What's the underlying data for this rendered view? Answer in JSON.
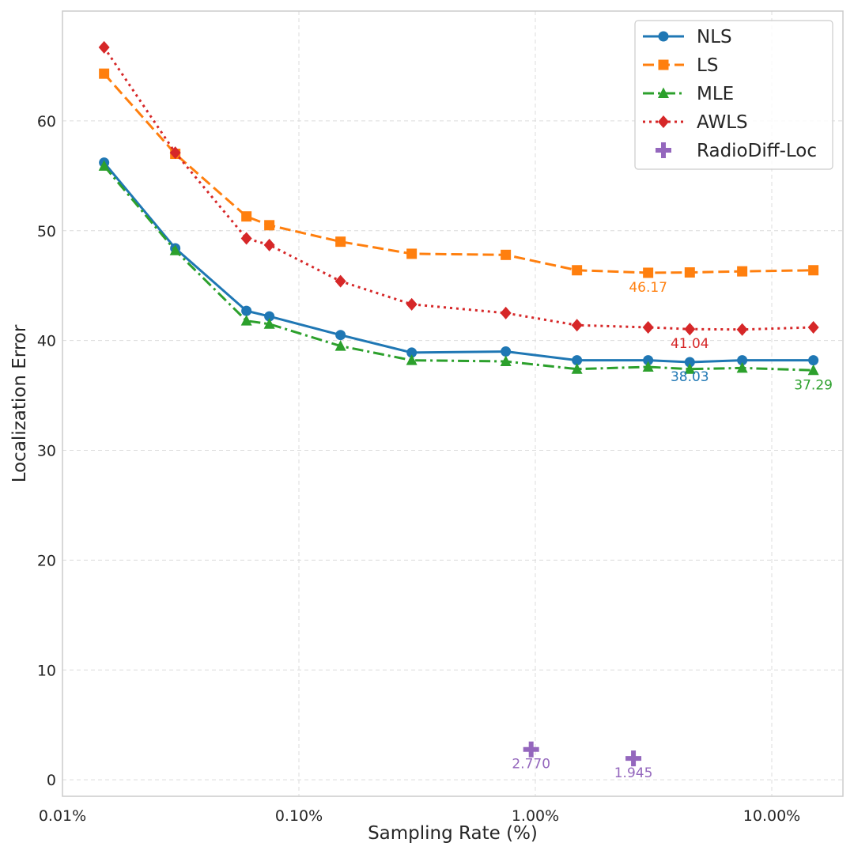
{
  "chart_data": {
    "type": "line",
    "title": "",
    "xlabel": "Sampling Rate (%)",
    "ylabel": "Localization Error",
    "xscale": "log",
    "xlim": [
      0.01,
      20
    ],
    "ylim": [
      -1.5,
      70
    ],
    "grid": true,
    "legend_position": "top-right",
    "x_ticks": [
      0.01,
      0.1,
      1,
      10
    ],
    "x_tick_labels": [
      "0.01%",
      "0.10%",
      "1.00%",
      "10.00%"
    ],
    "y_ticks": [
      0,
      10,
      20,
      30,
      40,
      50,
      60
    ],
    "y_tick_labels": [
      "0",
      "10",
      "20",
      "30",
      "40",
      "50",
      "60"
    ],
    "x": [
      0.015,
      0.03,
      0.06,
      0.075,
      0.15,
      0.3,
      0.75,
      1.5,
      3.0,
      4.5,
      7.5,
      15.0
    ],
    "series": [
      {
        "name": "NLS",
        "color": "#1f77b4",
        "style": "solid",
        "marker": "circle",
        "values": [
          56.2,
          48.4,
          42.7,
          42.2,
          40.5,
          38.9,
          39.0,
          38.2,
          38.2,
          38.03,
          38.2,
          38.2
        ]
      },
      {
        "name": "LS",
        "color": "#ff7f0e",
        "style": "dashed",
        "marker": "square",
        "values": [
          64.3,
          57.0,
          51.3,
          50.5,
          49.0,
          47.9,
          47.8,
          46.4,
          46.17,
          46.2,
          46.3,
          46.4
        ]
      },
      {
        "name": "MLE",
        "color": "#2ca02c",
        "style": "dashdot",
        "marker": "triangle",
        "values": [
          55.9,
          48.2,
          41.8,
          41.5,
          39.5,
          38.2,
          38.1,
          37.4,
          37.6,
          37.4,
          37.5,
          37.29
        ]
      },
      {
        "name": "AWLS",
        "color": "#d62728",
        "style": "dotted",
        "marker": "diamond",
        "values": [
          66.7,
          57.1,
          49.3,
          48.7,
          45.4,
          43.3,
          42.5,
          41.4,
          41.2,
          41.04,
          41.0,
          41.2
        ]
      }
    ],
    "scatter": {
      "name": "RadioDiff-Loc",
      "color": "#9467bd",
      "marker": "plus",
      "points": [
        {
          "x": 0.96,
          "y": 2.77,
          "label": "2.770"
        },
        {
          "x": 2.6,
          "y": 1.945,
          "label": "1.945"
        }
      ]
    },
    "annotations": [
      {
        "text": "46.17",
        "x": 3.0,
        "y": 46.17,
        "series": 1,
        "dx": 0,
        "dy": 24
      },
      {
        "text": "41.04",
        "x": 4.5,
        "y": 41.04,
        "series": 3,
        "dx": 0,
        "dy": 24
      },
      {
        "text": "38.03",
        "x": 4.5,
        "y": 38.03,
        "series": 0,
        "dx": 0,
        "dy": 24
      },
      {
        "text": "37.29",
        "x": 15.0,
        "y": 37.29,
        "series": 2,
        "dx": 0,
        "dy": 24
      }
    ]
  }
}
